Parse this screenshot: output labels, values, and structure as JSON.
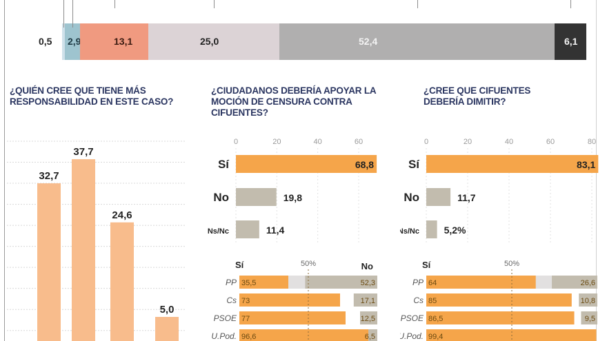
{
  "colors": {
    "orange": "#f5a54a",
    "light_orange": "#f8bc8c",
    "grey_no": "#c2bcae",
    "light_grey": "#e2e0e0",
    "title_blue": "#2a3560"
  },
  "chart_data": [
    {
      "id": "stacked-top",
      "type": "bar",
      "orientation": "horizontal-stacked",
      "title": "",
      "segments": [
        {
          "label": "0,5",
          "value": 0.5,
          "color": "#cfe1ea"
        },
        {
          "label": "2,9",
          "value": 2.9,
          "color": "#9ec4cf"
        },
        {
          "label": "13,1",
          "value": 13.1,
          "color": "#f09a80"
        },
        {
          "label": "25,0",
          "value": 25.0,
          "color": "#dcd3d6"
        },
        {
          "label": "52,4",
          "value": 52.4,
          "color": "#b0afaf"
        },
        {
          "label": "6,1",
          "value": 6.1,
          "color": "#333333"
        }
      ]
    },
    {
      "id": "responsabilidad",
      "type": "bar",
      "title": "¿QUIÉN CREE QUE TIENE MÁS RESPONSABILIDAD EN ESTE CASO?",
      "categories": [
        "",
        "",
        "",
        ""
      ],
      "values": [
        32.7,
        37.7,
        24.6,
        5.0
      ],
      "labels": [
        "32,7",
        "37,7",
        "24,6",
        "5,0"
      ],
      "ylim": [
        0,
        40
      ],
      "grid": true
    },
    {
      "id": "apoyar-mocion",
      "type": "bar",
      "orientation": "horizontal",
      "title": "¿CIUDADANOS DEBERÍA APOYAR LA MOCIÓN DE CENSURA CONTRA CIFUENTES?",
      "xticks": [
        "0",
        "20",
        "40",
        "60"
      ],
      "xlim": [
        0,
        70
      ],
      "categories": [
        "Sí",
        "No",
        "Ns/Nc"
      ],
      "values": [
        68.8,
        19.8,
        11.4
      ],
      "labels": [
        "68,8",
        "19,8",
        "11,4"
      ]
    },
    {
      "id": "dimitir",
      "type": "bar",
      "orientation": "horizontal",
      "title": "¿CREE QUE CIFUENTES DEBERÍA DIMITIR?",
      "xticks": [
        "0",
        "20",
        "40",
        "60",
        "80"
      ],
      "xlim": [
        0,
        85
      ],
      "categories": [
        "Sí",
        "No",
        "Ns/Nc"
      ],
      "values": [
        83.1,
        11.7,
        5.2
      ],
      "labels": [
        "83,1",
        "11,7",
        "5,2%"
      ]
    },
    {
      "id": "mocion-por-partido",
      "type": "bar",
      "orientation": "horizontal-diverging",
      "header_si": "Sí",
      "header_mid": "50%",
      "header_no": "No",
      "categories": [
        "PP",
        "Cs",
        "PSOE",
        "U.Pod."
      ],
      "series": [
        {
          "name": "Sí",
          "values": [
            35.5,
            73,
            77,
            96.6
          ],
          "labels": [
            "35,5",
            "73",
            "77",
            "96,6"
          ]
        },
        {
          "name": "No",
          "values": [
            52.3,
            17.1,
            12.5,
            6.5
          ],
          "labels": [
            "52,3",
            "17,1",
            "12,5",
            "6,5"
          ]
        }
      ]
    },
    {
      "id": "dimitir-por-partido",
      "type": "bar",
      "orientation": "horizontal-diverging",
      "header_si": "Sí",
      "header_mid": "50%",
      "categories": [
        "PP",
        "Cs",
        "PSOE",
        "U.Pod."
      ],
      "series": [
        {
          "name": "Sí",
          "values": [
            64,
            85,
            86.5,
            99.4
          ],
          "labels": [
            "64",
            "85",
            "86,5",
            "99,4"
          ]
        },
        {
          "name": "No",
          "values": [
            26.6,
            10.8,
            9.5,
            0
          ],
          "labels": [
            "26,6",
            "10,8",
            "9,5",
            ""
          ]
        }
      ]
    }
  ]
}
